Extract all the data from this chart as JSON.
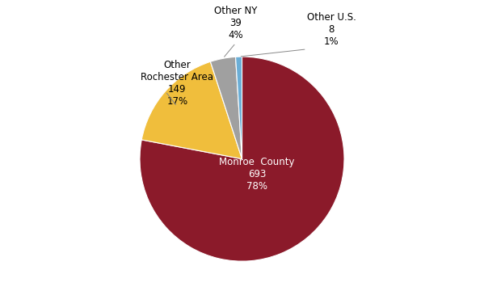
{
  "slices": [
    {
      "label": "Monroe  County\n693\n78%",
      "value": 78,
      "color": "#8B1A2A",
      "text_color": "white"
    },
    {
      "label": "Other\nRochester Area\n149\n17%",
      "value": 17,
      "color": "#F0BE3C",
      "text_color": "black"
    },
    {
      "label": "Other NY\n39\n4%",
      "value": 4,
      "color": "#A0A0A0",
      "text_color": "black"
    },
    {
      "label": "Other U.S.\n8\n1%",
      "value": 1,
      "color": "#6BAED6",
      "text_color": "black"
    }
  ],
  "figsize": [
    5.99,
    3.6
  ],
  "dpi": 100,
  "startangle": 90,
  "label_fontsize": 8.5
}
